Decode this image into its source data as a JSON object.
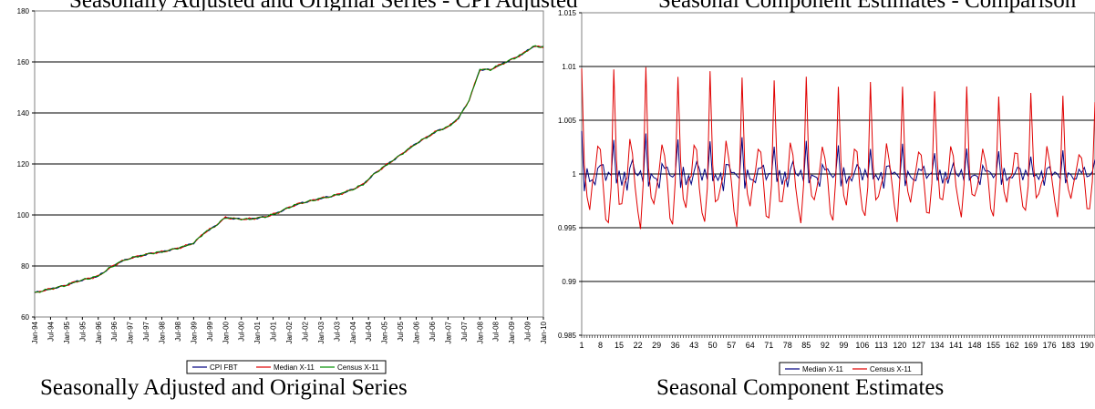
{
  "top_text": {
    "left": "Seasonally Adjusted and Original Series - CPI Adjusted",
    "right": "Seasonal Component Estimates - Comparison"
  },
  "captions": {
    "left": "Seasonally Adjusted and Original Series",
    "right": "Seasonal Component Estimates"
  },
  "chart_data": [
    {
      "type": "line",
      "title": "",
      "ylim": [
        60,
        180
      ],
      "yticks": [
        60,
        80,
        100,
        120,
        140,
        160,
        180
      ],
      "grid": "horizontal",
      "legend_position": "bottom",
      "x_tick_labels": [
        "Jan-94",
        "Jul-94",
        "Jan-95",
        "Jul-95",
        "Jan-96",
        "Jul-96",
        "Jan-97",
        "Jul-97",
        "Jan-98",
        "Jul-98",
        "Jan-99",
        "Jul-99",
        "Jan-00",
        "Jul-00",
        "Jan-01",
        "Jul-01",
        "Jan-02",
        "Jul-02",
        "Jan-03",
        "Jul-03",
        "Jan-04",
        "Jul-04",
        "Jan-05",
        "Jul-05",
        "Jan-06",
        "Jul-06",
        "Jan-07",
        "Jul-07",
        "Jan-08",
        "Jul-08",
        "Jan-09",
        "Jul-09",
        "Jan-10"
      ],
      "anchors": [
        [
          0,
          69.5
        ],
        [
          2,
          70.5
        ],
        [
          4,
          71.5
        ],
        [
          6,
          72.5
        ],
        [
          8,
          74
        ],
        [
          10,
          75
        ],
        [
          12,
          76
        ],
        [
          14,
          79
        ],
        [
          16,
          81.5
        ],
        [
          18,
          83
        ],
        [
          20,
          84
        ],
        [
          22,
          85
        ],
        [
          24,
          85.5
        ],
        [
          26,
          86.5
        ],
        [
          28,
          87.5
        ],
        [
          30,
          89
        ],
        [
          32,
          93
        ],
        [
          34,
          95.5
        ],
        [
          36,
          99
        ],
        [
          38,
          98.5
        ],
        [
          40,
          98.3
        ],
        [
          42,
          98.8
        ],
        [
          44,
          99.5
        ],
        [
          46,
          101
        ],
        [
          48,
          103
        ],
        [
          50,
          104.5
        ],
        [
          52,
          105.5
        ],
        [
          54,
          106.5
        ],
        [
          56,
          107.3
        ],
        [
          58,
          108.5
        ],
        [
          60,
          110
        ],
        [
          62,
          112
        ],
        [
          64,
          116
        ],
        [
          66,
          119
        ],
        [
          68,
          122
        ],
        [
          70,
          125
        ],
        [
          72,
          128
        ],
        [
          74,
          130.5
        ],
        [
          76,
          133
        ],
        [
          78,
          134.5
        ],
        [
          80,
          138
        ],
        [
          82,
          145
        ],
        [
          84,
          157
        ],
        [
          86,
          157
        ],
        [
          88,
          159
        ],
        [
          90,
          161
        ],
        [
          92,
          163
        ],
        [
          94,
          166
        ],
        [
          96,
          166
        ]
      ],
      "series": [
        {
          "name": "CPI FBT",
          "color": "#000080",
          "noise": 0.35
        },
        {
          "name": "Median X-11",
          "color": "#e00000",
          "noise": 0.5
        },
        {
          "name": "Census X-11",
          "color": "#009000",
          "noise": 0.45
        }
      ]
    },
    {
      "type": "line",
      "title": "",
      "ylim": [
        0.985,
        1.015
      ],
      "yticks": [
        0.985,
        0.99,
        0.995,
        1,
        1.005,
        1.01,
        1.015
      ],
      "ytick_labels": [
        "0.985",
        "0.99",
        "0.995",
        "1",
        "1.005",
        "1.01",
        "1.015"
      ],
      "grid": "horizontal",
      "legend_position": "bottom",
      "n_points": 193,
      "x_tick_labels": [
        "1",
        "8",
        "15",
        "22",
        "29",
        "36",
        "43",
        "50",
        "57",
        "64",
        "71",
        "78",
        "85",
        "92",
        "99",
        "106",
        "113",
        "120",
        "127",
        "134",
        "141",
        "148",
        "155",
        "162",
        "169",
        "176",
        "183",
        "190"
      ],
      "series": [
        {
          "name": "Median X-11",
          "color": "#000080",
          "pattern": [
            1.0037,
            0.9988,
            1.0003,
            0.9992,
            0.9998,
            0.9986,
            1.0007,
            1.001,
            1.0005,
            0.9997,
            1.0001,
            0.9996
          ],
          "amp_start": 1.0,
          "amp_end": 0.45
        },
        {
          "name": "Census X-11",
          "color": "#e00000",
          "pattern": [
            1.01,
            1.001,
            0.9975,
            0.997,
            0.999,
            1.0,
            1.003,
            1.002,
            0.999,
            0.996,
            0.995,
            0.999
          ],
          "amp_start": 1.0,
          "amp_end": 0.7
        }
      ]
    }
  ]
}
